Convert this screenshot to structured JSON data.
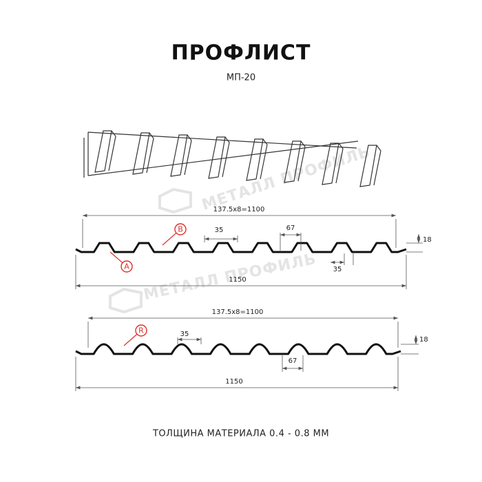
{
  "header": {
    "title": "ПРОФЛИСТ",
    "subtitle": "МП-20"
  },
  "watermarks": [
    "МЕТАЛЛ ПРОФИЛЬ",
    "МЕТАЛЛ ПРОФИЛЬ"
  ],
  "profile_1": {
    "pitch": "137.5x8=1100",
    "top_width": "35",
    "bottom_width": "67",
    "bottom_width_2": "35",
    "height": "18",
    "total_width": "1150",
    "markers": [
      "B",
      "A"
    ]
  },
  "profile_2": {
    "pitch": "137.5x8=1100",
    "top_width": "35",
    "bottom_width": "67",
    "height": "18",
    "total_width": "1150",
    "markers": [
      "R"
    ]
  },
  "footer": "ТОЛЩИНА МАТЕРИАЛА 0.4 - 0.8 ММ"
}
